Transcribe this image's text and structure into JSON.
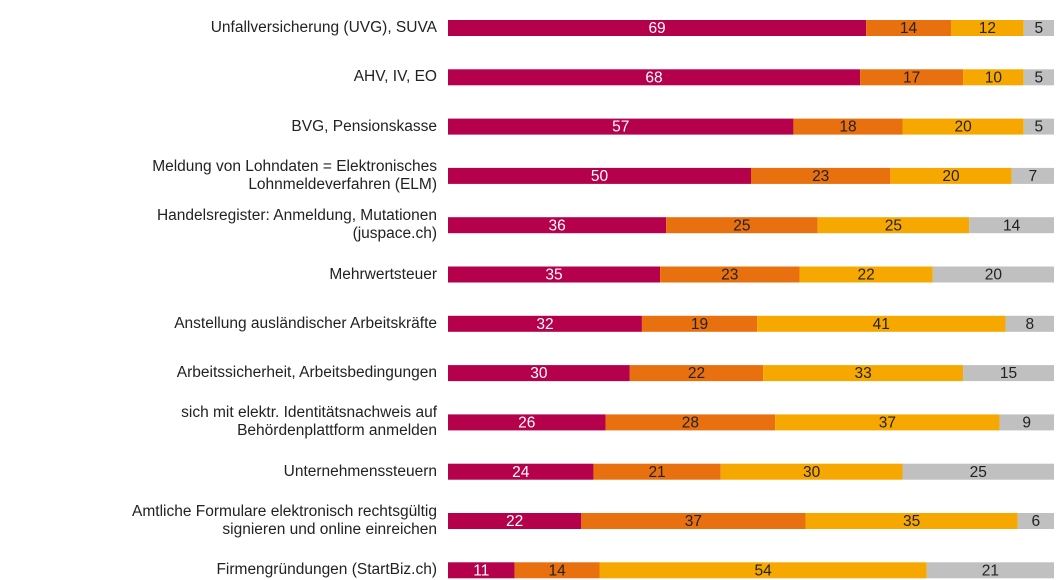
{
  "chart_data": {
    "type": "stacked-barh",
    "categories": [
      "Unfallversicherung (UVG), SUVA",
      "AHV, IV, EO",
      "BVG, Pensionskasse",
      "Meldung von Lohndaten = Elektronisches\nLohnmeldeverfahren (ELM)",
      "Handelsregister: Anmeldung, Mutationen\n(juspace.ch)",
      "Mehrwertsteuer",
      "Anstellung ausländischer Arbeitskräfte",
      "Arbeitssicherheit, Arbeitsbedingungen",
      "sich mit elektr. Identitätsnachweis auf\nBehördenplattform anmelden",
      "Unternehmenssteuern",
      "Amtliche Formulare elektronisch rechtsgültig\nsignieren und online einreichen",
      "Firmengründungen (StartBiz.ch)"
    ],
    "series": [
      {
        "color": "#b5004b",
        "values": [
          69,
          68,
          57,
          50,
          36,
          35,
          32,
          30,
          26,
          24,
          22,
          11
        ]
      },
      {
        "color": "#e8700f",
        "values": [
          14,
          17,
          18,
          23,
          25,
          23,
          19,
          22,
          28,
          21,
          37,
          14
        ]
      },
      {
        "color": "#f7a800",
        "values": [
          12,
          10,
          20,
          20,
          25,
          22,
          41,
          33,
          37,
          30,
          35,
          54
        ]
      },
      {
        "color": "#c0c0c0",
        "values": [
          5,
          5,
          5,
          7,
          14,
          20,
          8,
          15,
          9,
          25,
          6,
          21
        ]
      }
    ],
    "xlim": [
      0,
      100
    ]
  }
}
